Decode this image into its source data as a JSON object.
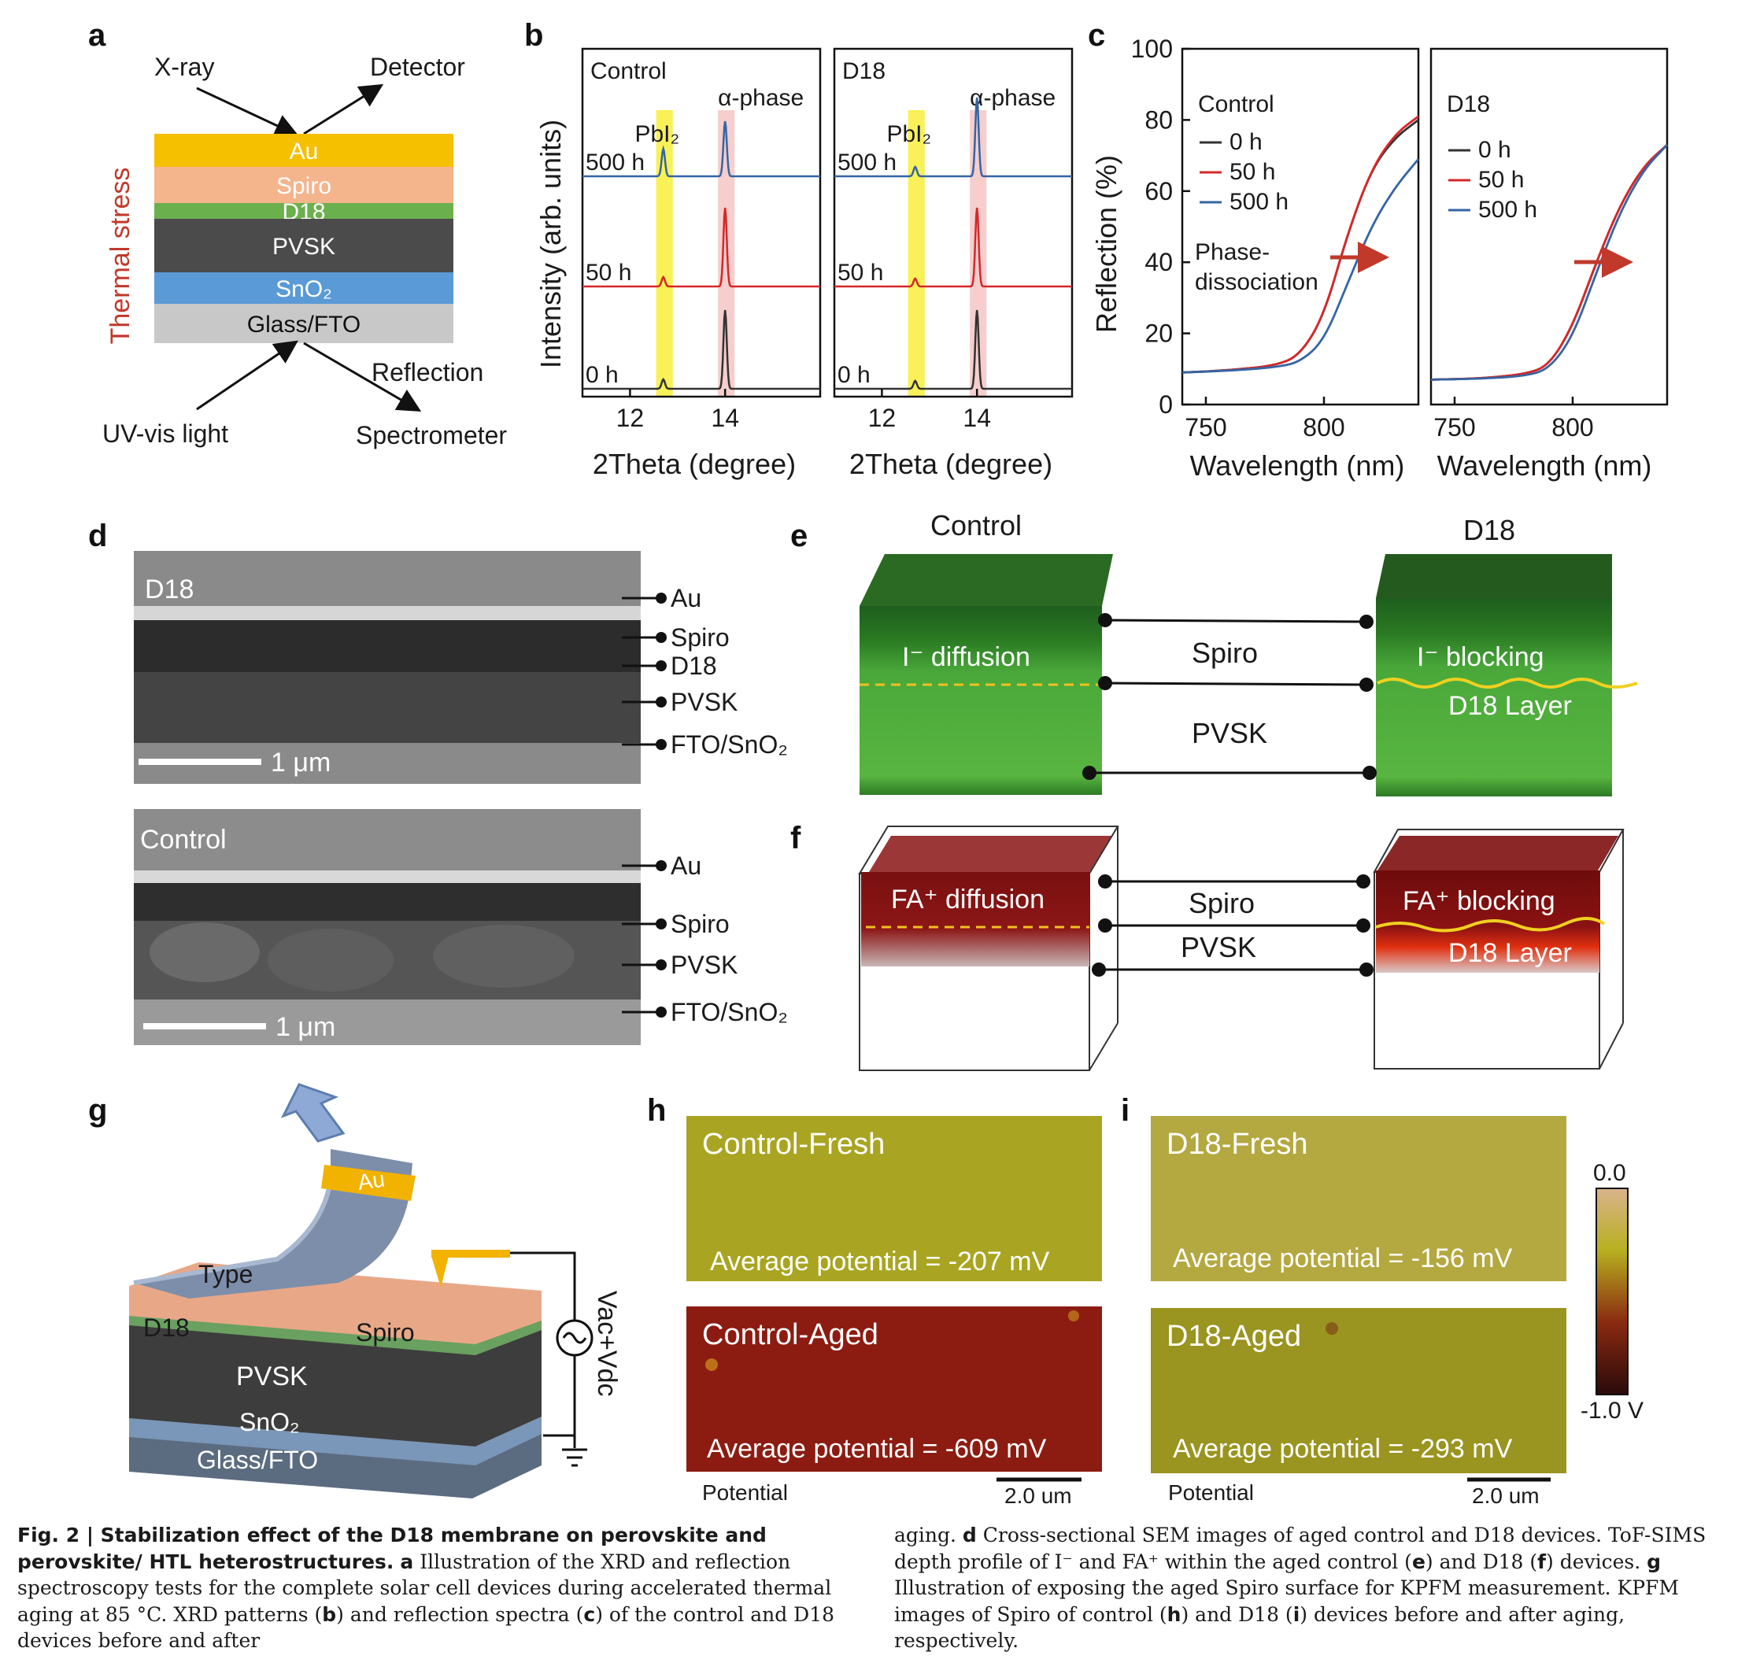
{
  "panel_letters": {
    "a": "a",
    "b": "b",
    "c": "c",
    "d": "d",
    "e": "e",
    "f": "f",
    "g": "g",
    "h": "h",
    "i": "i"
  },
  "panel_a": {
    "xray": "X-ray",
    "detector": "Detector",
    "thermal_stress": "Thermal stress",
    "layers": [
      "Au",
      "Spiro",
      "D18",
      "PVSK",
      "SnO₂",
      "Glass/FTO"
    ],
    "layer_colors": [
      "#f5c000",
      "#f4b48c",
      "#6ab04c",
      "#4b4b4b",
      "#5a9ad6",
      "#c8c8c8"
    ],
    "reflection": "Reflection",
    "uv_vis": "UV-vis light",
    "spectrometer": "Spectrometer"
  },
  "panel_b": {
    "ylabel": "Intensity (arb. units)",
    "xlabel": "2Theta (degree)",
    "pbi2": "PbI₂",
    "alpha": "α-phase",
    "subplots": [
      {
        "title": "Control"
      },
      {
        "title": "D18"
      }
    ]
  },
  "panel_c": {
    "ylabel": "Reflection (%)",
    "xlabel": "Wavelength (nm)",
    "phase_note": [
      "Phase-",
      "dissociation"
    ],
    "subplots": [
      {
        "title": "Control"
      },
      {
        "title": "D18"
      }
    ]
  },
  "panel_d": {
    "sem": [
      {
        "title": "D18",
        "scalebar": "1 μm",
        "labels": [
          "Au",
          "Spiro",
          "D18",
          "PVSK",
          "FTO/SnO₂"
        ]
      },
      {
        "title": "Control",
        "scalebar": "1 μm",
        "labels": [
          "Au",
          "Spiro",
          "PVSK",
          "FTO/SnO₂"
        ]
      }
    ]
  },
  "panel_e": {
    "control_title": "Control",
    "d18_title": "D18",
    "left_label": "I⁻ diffusion",
    "right_label": "I⁻ blocking",
    "right_layer": "D18 Layer",
    "mid_spiro": "Spiro",
    "mid_pvsk": "PVSK"
  },
  "panel_f": {
    "left_label": "FA⁺ diffusion",
    "right_label": "FA⁺ blocking",
    "right_layer": "D18 Layer",
    "mid_spiro": "Spiro",
    "mid_pvsk": "PVSK"
  },
  "panel_g": {
    "au": "Au",
    "type": "Type",
    "d18": "D18",
    "spiro": "Spiro",
    "pvsk": "PVSK",
    "sno2": "SnO₂",
    "glass": "Glass/FTO",
    "voltage": "Vac+Vdc"
  },
  "panel_h": {
    "fresh_title": "Control-Fresh",
    "fresh_avg": "Average potential = -207 mV",
    "aged_title": "Control-Aged",
    "aged_avg": "Average potential = -609 mV",
    "potential": "Potential",
    "scalebar": "2.0 um"
  },
  "panel_i": {
    "fresh_title": "D18-Fresh",
    "fresh_avg": "Average potential = -156 mV",
    "aged_title": "D18-Aged",
    "aged_avg": "Average potential = -293 mV",
    "potential": "Potential",
    "scalebar": "2.0 um",
    "cbar_top": "0.0",
    "cbar_bottom": "-1.0 V"
  },
  "caption": {
    "left_head": "Fig. 2 | Stabilization effect of the D18 membrane on perovskite and perovskite/ HTL heterostructures.",
    "left_a": "a",
    "left_text1": "Illustration of the XRD and reflection spectroscopy tests for the complete solar cell devices during accelerated thermal aging at 85 °C. XRD patterns (",
    "left_b": "b",
    "left_text2": ") and reflection spectra (",
    "left_c": "c",
    "left_text3": ") of the control and D18 devices before and after",
    "right_text1": "aging.",
    "right_d": "d",
    "right_text2": "Cross-sectional SEM images of aged control and D18 devices. ToF-SIMS depth profile of I⁻ and FA⁺ within the aged control (",
    "right_e": "e",
    "right_text3": ") and D18 (",
    "right_f": "f",
    "right_text4": ") devices.",
    "right_g": "g",
    "right_text5": "Illustration of exposing the aged Spiro surface for KPFM measurement. KPFM images of Spiro of control (",
    "right_h": "h",
    "right_text6": ") and D18 (",
    "right_i": "i",
    "right_text7": ") devices before and after aging, respectively."
  },
  "chart_data": [
    {
      "type": "line",
      "title": "Control",
      "xlabel": "2Theta (degree)",
      "ylabel": "Intensity (arb. units)",
      "xlim": [
        11,
        16
      ],
      "x_ticks": [
        12,
        14
      ],
      "series": [
        {
          "name": "0 h",
          "color": "#333333",
          "peaks": [
            {
              "x": 12.7,
              "h": 0.12
            },
            {
              "x": 14.0,
              "h": 1.0
            }
          ]
        },
        {
          "name": "50 h",
          "color": "#d62728",
          "peaks": [
            {
              "x": 12.7,
              "h": 0.12
            },
            {
              "x": 14.0,
              "h": 1.0
            }
          ]
        },
        {
          "name": "500 h",
          "color": "#3465a4",
          "peaks": [
            {
              "x": 12.7,
              "h": 0.35
            },
            {
              "x": 14.0,
              "h": 0.7
            }
          ]
        }
      ]
    },
    {
      "type": "line",
      "title": "D18",
      "xlabel": "2Theta (degree)",
      "ylabel": "Intensity (arb. units)",
      "xlim": [
        11,
        16
      ],
      "x_ticks": [
        12,
        14
      ],
      "series": [
        {
          "name": "0 h",
          "color": "#333333",
          "peaks": [
            {
              "x": 12.7,
              "h": 0.1
            },
            {
              "x": 14.0,
              "h": 1.0
            }
          ]
        },
        {
          "name": "50 h",
          "color": "#d62728",
          "peaks": [
            {
              "x": 12.7,
              "h": 0.1
            },
            {
              "x": 14.0,
              "h": 1.0
            }
          ]
        },
        {
          "name": "500 h",
          "color": "#3465a4",
          "peaks": [
            {
              "x": 12.7,
              "h": 0.12
            },
            {
              "x": 14.0,
              "h": 1.0
            }
          ]
        }
      ]
    },
    {
      "type": "line",
      "title": "Control",
      "xlabel": "Wavelength (nm)",
      "ylabel": "Reflection (%)",
      "xlim": [
        740,
        840
      ],
      "ylim": [
        0,
        100
      ],
      "x_ticks": [
        750,
        800
      ],
      "y_ticks": [
        0,
        20,
        40,
        60,
        80,
        100
      ],
      "series": [
        {
          "name": "0 h",
          "color": "#333333",
          "x": [
            740,
            760,
            780,
            790,
            800,
            810,
            820,
            830,
            840
          ],
          "y": [
            9,
            9.6,
            11,
            14,
            25,
            48,
            66,
            75,
            80
          ]
        },
        {
          "name": "50 h",
          "color": "#d62728",
          "x": [
            740,
            760,
            780,
            790,
            800,
            810,
            820,
            830,
            840
          ],
          "y": [
            9,
            9.6,
            11,
            14,
            25,
            48,
            66,
            76,
            81
          ]
        },
        {
          "name": "500 h",
          "color": "#3465a4",
          "x": [
            740,
            760,
            780,
            790,
            800,
            810,
            820,
            830,
            840
          ],
          "y": [
            9,
            9.5,
            10.5,
            12,
            18,
            34,
            50,
            61,
            69
          ]
        }
      ]
    },
    {
      "type": "line",
      "title": "D18",
      "xlabel": "Wavelength (nm)",
      "ylabel": "Reflection (%)",
      "xlim": [
        740,
        840
      ],
      "ylim": [
        0,
        100
      ],
      "x_ticks": [
        750,
        800
      ],
      "series": [
        {
          "name": "0 h",
          "color": "#333333",
          "x": [
            740,
            760,
            780,
            790,
            800,
            810,
            820,
            830,
            840
          ],
          "y": [
            7,
            7.3,
            8.5,
            11,
            22,
            40,
            56,
            67,
            73
          ]
        },
        {
          "name": "50 h",
          "color": "#d62728",
          "x": [
            740,
            760,
            780,
            790,
            800,
            810,
            820,
            830,
            840
          ],
          "y": [
            7,
            7.3,
            8.5,
            11,
            22,
            40,
            56,
            67,
            73
          ]
        },
        {
          "name": "500 h",
          "color": "#3465a4",
          "x": [
            740,
            760,
            780,
            790,
            800,
            810,
            820,
            830,
            840
          ],
          "y": [
            7,
            7.2,
            8.0,
            10,
            19,
            37,
            54,
            66,
            73
          ]
        }
      ]
    }
  ]
}
